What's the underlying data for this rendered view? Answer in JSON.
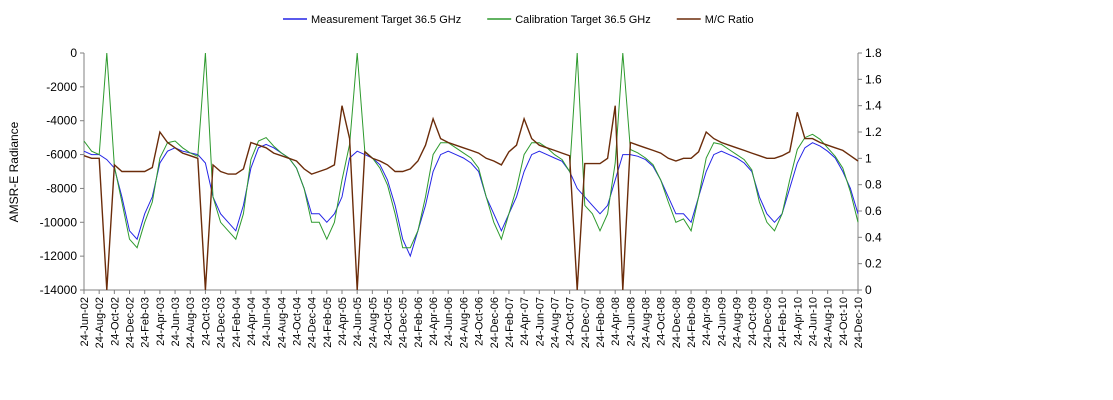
{
  "chart_data": {
    "type": "line",
    "y_label": "AMSR-E Radiance",
    "categories": [
      "24-Jun-02",
      null,
      "24-Aug-02",
      null,
      "24-Oct-02",
      null,
      "24-Dec-02",
      null,
      "24-Feb-03",
      null,
      "24-Apr-03",
      null,
      "24-Jun-03",
      null,
      "24-Aug-03",
      null,
      "24-Oct-03",
      null,
      "24-Dec-03",
      null,
      "24-Feb-04",
      null,
      "24-Apr-04",
      null,
      "24-Jun-04",
      null,
      "24-Aug-04",
      null,
      "24-Oct-04",
      null,
      "24-Dec-04",
      null,
      "24-Feb-05",
      null,
      "24-Apr-05",
      null,
      "24-Jun-05",
      null,
      "24-Aug-05",
      null,
      "24-Oct-05",
      null,
      "24-Dec-05",
      null,
      "24-Feb-06",
      null,
      "24-Apr-06",
      null,
      "24-Jun-06",
      null,
      "24-Aug-06",
      null,
      "24-Oct-06",
      null,
      "24-Dec-06",
      null,
      "24-Feb-07",
      null,
      "24-Apr-07",
      null,
      "24-Jun-07",
      null,
      "24-Aug-07",
      null,
      "24-Oct-07",
      null,
      "24-Dec-07",
      null,
      "24-Feb-08",
      null,
      "24-Apr-08",
      null,
      "24-Jun-08",
      null,
      "24-Aug-08",
      null,
      "24-Oct-08",
      null,
      "24-Dec-08",
      null,
      "24-Feb-09",
      null,
      "24-Apr-09",
      null,
      "24-Jun-09",
      null,
      "24-Aug-09",
      null,
      "24-Oct-09",
      null,
      "24-Dec-09",
      null,
      "24-Feb-10",
      null,
      "24-Apr-10",
      null,
      "24-Jun-10",
      null,
      "24-Aug-10",
      null,
      "24-Oct-10",
      null,
      "24-Dec-10"
    ],
    "series": [
      {
        "name": "Measurement Target 36.5 GHz",
        "color": "#2424e6",
        "axis": "y",
        "values": [
          -5800,
          -6000,
          -6000,
          -6300,
          -6800,
          -8500,
          -10500,
          -11000,
          -9500,
          -8500,
          -6500,
          -5800,
          -5600,
          -5800,
          -5900,
          -6000,
          -6500,
          -8500,
          -9500,
          -10000,
          -10500,
          -9000,
          -6800,
          -5600,
          -5400,
          -5600,
          -5900,
          -6200,
          -6800,
          -8000,
          -9500,
          -9500,
          -10000,
          -9500,
          -8500,
          -6200,
          -5800,
          -6000,
          -6200,
          -6600,
          -7500,
          -9000,
          -11000,
          -12000,
          -10500,
          -9000,
          -7000,
          -6000,
          -5800,
          -6000,
          -6200,
          -6500,
          -7000,
          -8500,
          -9500,
          -10500,
          -9500,
          -8500,
          -7000,
          -6000,
          -5800,
          -6000,
          -6200,
          -6400,
          -7000,
          -8000,
          -8500,
          -9000,
          -9500,
          -9000,
          -7500,
          -6000,
          -6000,
          -6100,
          -6300,
          -6700,
          -7500,
          -8500,
          -9500,
          -9500,
          -10000,
          -8500,
          -7000,
          -6000,
          -5800,
          -6000,
          -6200,
          -6500,
          -7000,
          -8500,
          -9500,
          -10000,
          -9500,
          -8000,
          -6500,
          -5600,
          -5300,
          -5500,
          -5800,
          -6200,
          -7000,
          -8000,
          -9500
        ]
      },
      {
        "name": "Calibration Target 36.5 GHz",
        "color": "#2e9a2e",
        "axis": "y",
        "values": [
          -5200,
          -5800,
          -6000,
          0,
          -6700,
          -8800,
          -11000,
          -11500,
          -10000,
          -8800,
          -6200,
          -5300,
          -5200,
          -5600,
          -5900,
          -6100,
          0,
          -8500,
          -10000,
          -10500,
          -11000,
          -9500,
          -6300,
          -5200,
          -5000,
          -5500,
          -5900,
          -6200,
          -6800,
          -8000,
          -10000,
          -10000,
          -11000,
          -10000,
          -7500,
          -5400,
          0,
          -5800,
          -6200,
          -6800,
          -7800,
          -9500,
          -11500,
          -11500,
          -10500,
          -8500,
          -6000,
          -5300,
          -5300,
          -5600,
          -5900,
          -6200,
          -6800,
          -8500,
          -10000,
          -11000,
          -9500,
          -8000,
          -6000,
          -5300,
          -5300,
          -5600,
          -6000,
          -6300,
          -7000,
          0,
          -9000,
          -9500,
          -10500,
          -9500,
          -6500,
          0,
          -5700,
          -5900,
          -6200,
          -6600,
          -7500,
          -8800,
          -10000,
          -9800,
          -10500,
          -8500,
          -6200,
          -5300,
          -5400,
          -5700,
          -6000,
          -6300,
          -6900,
          -8800,
          -10000,
          -10500,
          -9500,
          -7500,
          -5700,
          -5000,
          -4800,
          -5100,
          -5600,
          -6100,
          -6800,
          -8200,
          -10000
        ]
      },
      {
        "name": "M/C Ratio",
        "color": "#6b2c0a",
        "axis": "y2",
        "values": [
          1.02,
          1.0,
          1.0,
          0,
          0.95,
          0.9,
          0.9,
          0.9,
          0.9,
          0.93,
          1.2,
          1.12,
          1.08,
          1.04,
          1.02,
          1.0,
          0,
          0.95,
          0.9,
          0.88,
          0.88,
          0.92,
          1.12,
          1.1,
          1.08,
          1.04,
          1.02,
          1.0,
          0.98,
          0.92,
          0.88,
          0.9,
          0.92,
          0.95,
          1.4,
          1.15,
          0,
          1.05,
          1.0,
          0.98,
          0.95,
          0.9,
          0.9,
          0.92,
          0.98,
          1.1,
          1.3,
          1.15,
          1.12,
          1.1,
          1.08,
          1.06,
          1.04,
          1.0,
          0.98,
          0.95,
          1.05,
          1.1,
          1.3,
          1.15,
          1.1,
          1.08,
          1.06,
          1.04,
          1.02,
          0,
          0.96,
          0.96,
          0.96,
          1.0,
          1.4,
          0,
          1.12,
          1.1,
          1.08,
          1.06,
          1.04,
          1.0,
          0.98,
          1.0,
          1.0,
          1.05,
          1.2,
          1.15,
          1.12,
          1.1,
          1.08,
          1.06,
          1.04,
          1.02,
          1.0,
          1.0,
          1.02,
          1.05,
          1.35,
          1.15,
          1.15,
          1.12,
          1.1,
          1.08,
          1.06,
          1.02,
          0.98
        ]
      }
    ],
    "ylim": [
      -14000,
      0
    ],
    "yticks": [
      -14000,
      -12000,
      -10000,
      -8000,
      -6000,
      -4000,
      -2000,
      0
    ],
    "y2lim": [
      0,
      1.8
    ],
    "y2ticks": [
      0,
      0.2,
      0.4,
      0.6,
      0.8,
      1,
      1.2,
      1.4,
      1.6,
      1.8
    ],
    "grid": false,
    "legend": "top"
  }
}
